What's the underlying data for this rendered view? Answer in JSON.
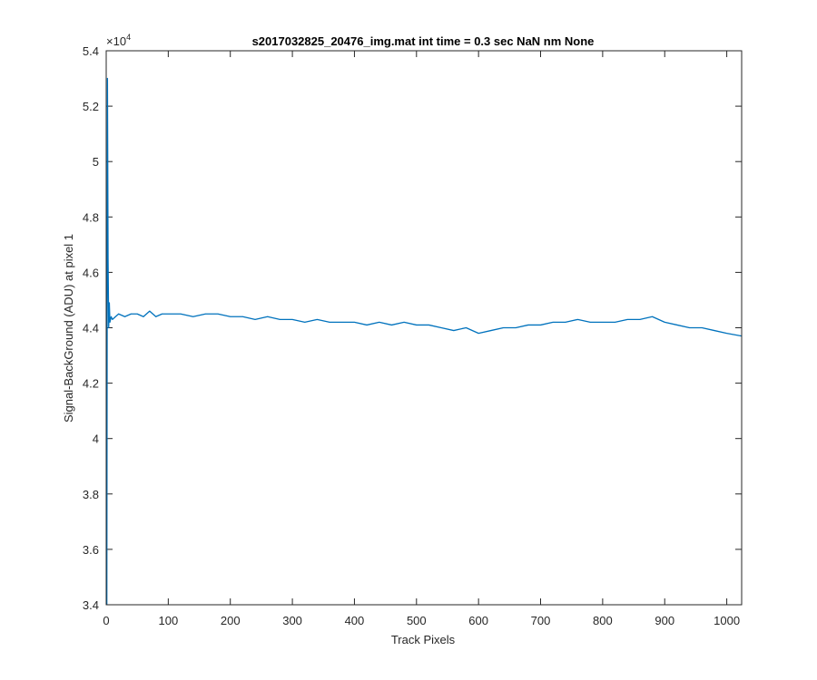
{
  "chart_data": {
    "type": "line",
    "title": "s2017032825_20476_img.mat int time = 0.3 sec  NaN nm None",
    "xlabel": "Track Pixels",
    "ylabel": "Signal-BackGround (ADU) at pixel 1",
    "y_exponent_label": "×10",
    "y_exponent_power": "4",
    "xlim": [
      0,
      1024
    ],
    "ylim": [
      3.4,
      5.4
    ],
    "y_scale_factor": 10000,
    "xticks": [
      0,
      100,
      200,
      300,
      400,
      500,
      600,
      700,
      800,
      900,
      1000
    ],
    "xtick_labels": [
      "0",
      "100",
      "200",
      "300",
      "400",
      "500",
      "600",
      "700",
      "800",
      "900",
      "1000"
    ],
    "yticks": [
      3.4,
      3.6,
      3.8,
      4.0,
      4.2,
      4.4,
      4.6,
      4.8,
      5.0,
      5.2,
      5.4
    ],
    "ytick_labels": [
      "3.4",
      "3.6",
      "3.8",
      "4",
      "4.2",
      "4.4",
      "4.6",
      "4.8",
      "5",
      "5.2",
      "5.4"
    ],
    "grid": false,
    "line_color": "#0072BD",
    "series": [
      {
        "x": [
          1,
          2,
          3,
          4,
          5,
          6,
          8,
          10,
          15,
          20,
          30,
          40,
          50,
          60,
          70,
          80,
          90,
          100,
          120,
          140,
          160,
          180,
          200,
          220,
          240,
          260,
          280,
          300,
          320,
          340,
          360,
          380,
          400,
          420,
          440,
          460,
          480,
          500,
          520,
          540,
          560,
          580,
          600,
          620,
          640,
          660,
          680,
          700,
          720,
          740,
          760,
          780,
          800,
          820,
          840,
          860,
          880,
          900,
          920,
          940,
          960,
          980,
          1000,
          1024
        ],
        "y": [
          3.4,
          5.3,
          4.65,
          4.4,
          4.49,
          4.42,
          4.44,
          4.43,
          4.44,
          4.45,
          4.44,
          4.45,
          4.45,
          4.44,
          4.46,
          4.44,
          4.45,
          4.45,
          4.45,
          4.44,
          4.45,
          4.45,
          4.44,
          4.44,
          4.43,
          4.44,
          4.43,
          4.43,
          4.42,
          4.43,
          4.42,
          4.42,
          4.42,
          4.41,
          4.42,
          4.41,
          4.42,
          4.41,
          4.41,
          4.4,
          4.39,
          4.4,
          4.38,
          4.39,
          4.4,
          4.4,
          4.41,
          4.41,
          4.42,
          4.42,
          4.43,
          4.42,
          4.42,
          4.42,
          4.43,
          4.43,
          4.44,
          4.42,
          4.41,
          4.4,
          4.4,
          4.39,
          4.38,
          4.37
        ]
      }
    ]
  }
}
